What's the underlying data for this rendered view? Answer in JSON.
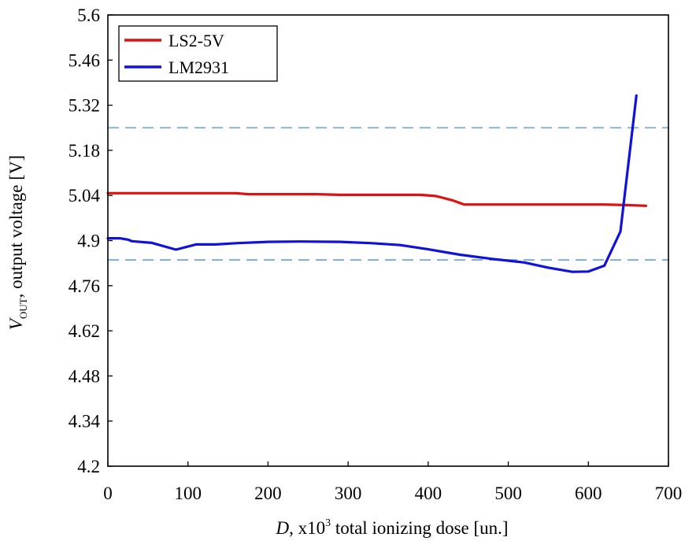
{
  "chart_data": {
    "type": "line",
    "xlim": [
      0,
      700
    ],
    "ylim": [
      4.2,
      5.6
    ],
    "x_ticks": [
      "0",
      "100",
      "200",
      "300",
      "400",
      "500",
      "600",
      "700"
    ],
    "y_ticks": [
      "4.2",
      "4.34",
      "4.48",
      "4.62",
      "4.76",
      "4.9",
      "5.04",
      "5.18",
      "5.32",
      "5.46",
      "5.6"
    ],
    "xlabel": {
      "var": "D",
      "pre": ", x10",
      "sup": "3",
      "post": " total ionizing dose [un.]"
    },
    "ylabel": {
      "var": "V",
      "sub": "OUT",
      "post": ", output voltage [V]"
    },
    "grid": false,
    "legend_position": "top-left",
    "reference_lines": [
      5.25,
      4.84
    ],
    "reference_color": "#7aaae0",
    "series": [
      {
        "name": "LS2-5V",
        "color": "#dd1111",
        "x": [
          0,
          50,
          100,
          150,
          160,
          175,
          200,
          260,
          290,
          350,
          390,
          410,
          430,
          445,
          500,
          550,
          600,
          620,
          650,
          672
        ],
        "y": [
          5.047,
          5.047,
          5.047,
          5.047,
          5.047,
          5.044,
          5.044,
          5.044,
          5.042,
          5.042,
          5.042,
          5.038,
          5.025,
          5.012,
          5.012,
          5.012,
          5.012,
          5.012,
          5.01,
          5.008
        ]
      },
      {
        "name": "LM2931",
        "color": "#1111dd",
        "x": [
          0,
          15,
          25,
          30,
          55,
          85,
          110,
          135,
          160,
          200,
          240,
          290,
          330,
          365,
          400,
          440,
          480,
          520,
          550,
          580,
          600,
          620,
          640,
          660
        ],
        "y": [
          4.907,
          4.907,
          4.903,
          4.898,
          4.893,
          4.872,
          4.888,
          4.888,
          4.892,
          4.896,
          4.897,
          4.896,
          4.892,
          4.886,
          4.873,
          4.856,
          4.843,
          4.832,
          4.816,
          4.803,
          4.804,
          4.822,
          4.928,
          5.35
        ]
      }
    ]
  }
}
